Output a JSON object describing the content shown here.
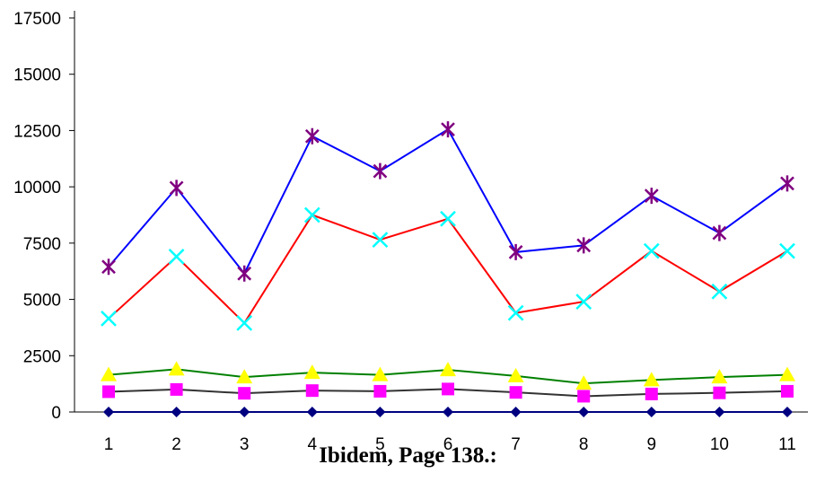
{
  "caption": "Ibidem, Page 138.:",
  "chart_data": {
    "type": "line",
    "title": "",
    "xlabel": "",
    "ylabel": "",
    "categories": [
      "1",
      "2",
      "3",
      "4",
      "5",
      "6",
      "7",
      "8",
      "9",
      "10",
      "11"
    ],
    "ylim": [
      0,
      17500
    ],
    "yticks": [
      0,
      2500,
      5000,
      7500,
      10000,
      12500,
      15000,
      17500
    ],
    "ytick_labels": [
      "0",
      "2500",
      "5000",
      "7500",
      "10000",
      "12500",
      "15000",
      "17500"
    ],
    "grid": false,
    "legend": "none",
    "series": [
      {
        "values": [
          0,
          0,
          0,
          0,
          0,
          0,
          0,
          0,
          0,
          0,
          0
        ],
        "line_color": "#000080",
        "marker": "diamond",
        "marker_color": "#000080"
      },
      {
        "values": [
          900,
          1000,
          830,
          950,
          920,
          1020,
          870,
          700,
          800,
          850,
          920
        ],
        "line_color": "#333333",
        "marker": "square",
        "marker_color": "#ff00ff"
      },
      {
        "values": [
          1650,
          1900,
          1550,
          1750,
          1650,
          1870,
          1600,
          1270,
          1420,
          1550,
          1650
        ],
        "line_color": "#008000",
        "marker": "triangle",
        "marker_color": "#ffff00"
      },
      {
        "values": [
          4150,
          6900,
          3950,
          8750,
          7650,
          8580,
          4400,
          4900,
          7150,
          5350,
          7150
        ],
        "line_color": "#ff0000",
        "marker": "x",
        "marker_color": "#00ffff"
      },
      {
        "values": [
          6450,
          9950,
          6150,
          12250,
          10700,
          12550,
          7100,
          7400,
          9600,
          7950,
          10150
        ],
        "line_color": "#0000ff",
        "marker": "asterisk",
        "marker_color": "#800080"
      }
    ]
  }
}
